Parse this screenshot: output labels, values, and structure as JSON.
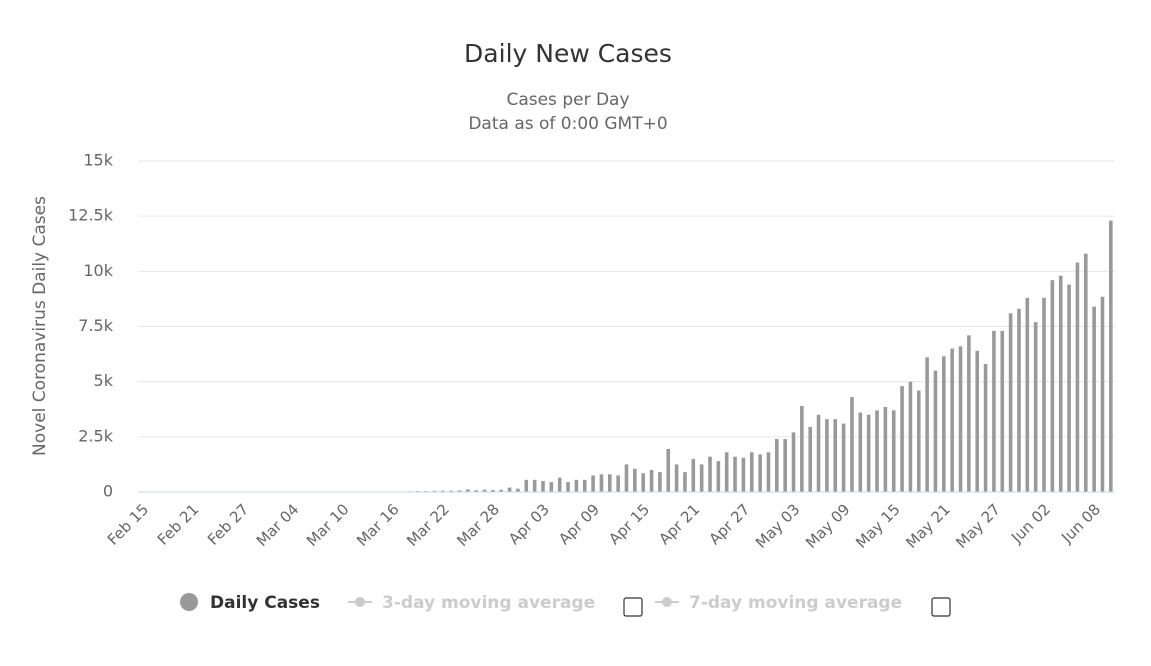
{
  "chart_data": {
    "type": "bar",
    "title": "Daily New Cases",
    "subtitle": [
      "Cases per Day",
      "Data as of 0:00 GMT+0"
    ],
    "y_label": "Novel Coronavirus Daily Cases",
    "categories": [
      "Feb 15",
      null,
      null,
      null,
      null,
      null,
      "Feb 21",
      null,
      null,
      null,
      null,
      null,
      "Feb 27",
      null,
      null,
      null,
      null,
      null,
      "Mar 04",
      null,
      null,
      null,
      null,
      null,
      "Mar 10",
      null,
      null,
      null,
      null,
      null,
      "Mar 16",
      null,
      null,
      null,
      null,
      null,
      "Mar 22",
      null,
      null,
      null,
      null,
      null,
      "Mar 28",
      null,
      null,
      null,
      null,
      null,
      "Apr 03",
      null,
      null,
      null,
      null,
      null,
      "Apr 09",
      null,
      null,
      null,
      null,
      null,
      "Apr 15",
      null,
      null,
      null,
      null,
      null,
      "Apr 21",
      null,
      null,
      null,
      null,
      null,
      "Apr 27",
      null,
      null,
      null,
      null,
      null,
      "May 03",
      null,
      null,
      null,
      null,
      null,
      "May 09",
      null,
      null,
      null,
      null,
      null,
      "May 15",
      null,
      null,
      null,
      null,
      null,
      "May 21",
      null,
      null,
      null,
      null,
      null,
      "May 27",
      null,
      null,
      null,
      null,
      null,
      "Jun 02",
      null,
      null,
      null,
      null,
      null,
      "Jun 08",
      null,
      null
    ],
    "series": [
      {
        "name": "Daily Cases",
        "color": "#999999",
        "values": [
          0,
          0,
          0,
          0,
          0,
          0,
          0,
          0,
          0,
          0,
          0,
          0,
          0,
          0,
          0,
          0,
          0,
          0,
          0,
          0,
          0,
          0,
          0,
          0,
          0,
          0,
          0,
          0,
          0,
          0,
          10,
          20,
          30,
          40,
          40,
          50,
          60,
          60,
          70,
          120,
          80,
          110,
          90,
          100,
          200,
          150,
          550,
          550,
          500,
          450,
          650,
          450,
          550,
          550,
          750,
          800,
          800,
          750,
          1250,
          1050,
          850,
          1000,
          900,
          1950,
          1250,
          900,
          1500,
          1250,
          1600,
          1400,
          1800,
          1600,
          1550,
          1800,
          1700,
          1800,
          2400,
          2400,
          2700,
          3900,
          2950,
          3500,
          3300,
          3300,
          3100,
          4300,
          3600,
          3500,
          3700,
          3850,
          3700,
          4800,
          5000,
          4600,
          6100,
          5500,
          6150,
          6500,
          6600,
          7100,
          6400,
          5800,
          7300,
          7300,
          8100,
          8300,
          8800,
          7700,
          8800,
          9600,
          9800,
          9400,
          10400,
          10800,
          8400,
          8850,
          12300
        ]
      }
    ],
    "legend_extra": [
      {
        "name": "3-day moving average",
        "color": "#cccccc"
      },
      {
        "name": "7-day moving average",
        "color": "#cccccc"
      }
    ],
    "ylim": [
      0,
      15000
    ],
    "yticks": [
      0,
      {
        "value": 2500,
        "label": "2.5k"
      },
      {
        "value": 5000,
        "label": "5k"
      },
      {
        "value": 7500,
        "label": "7.5k"
      },
      {
        "value": 10000,
        "label": "10k"
      },
      {
        "value": 12500,
        "label": "12.5k"
      },
      {
        "value": 15000,
        "label": "15k"
      }
    ],
    "grid": true
  }
}
